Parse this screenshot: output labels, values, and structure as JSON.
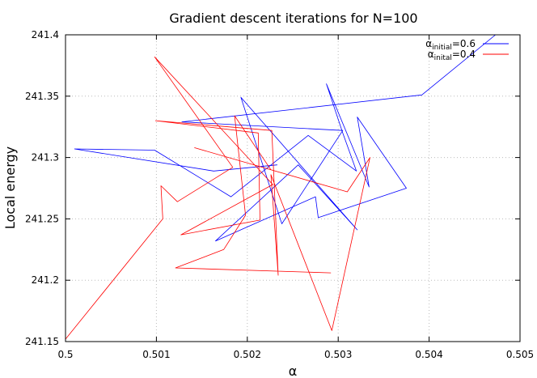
{
  "chart_data": {
    "type": "line",
    "title": "Gradient descent iterations for N=100",
    "xlabel": "α",
    "ylabel": "Local energy",
    "xlim": [
      0.5,
      0.505
    ],
    "ylim": [
      241.15,
      241.4
    ],
    "xticks": [
      0.5,
      0.501,
      0.502,
      0.503,
      0.504,
      0.505
    ],
    "yticks": [
      241.15,
      241.2,
      241.25,
      241.3,
      241.35,
      241.4
    ],
    "xtick_labels": [
      "0.5",
      "0.501",
      "0.502",
      "0.503",
      "0.504",
      "0.505"
    ],
    "ytick_labels": [
      "241.15",
      "241.2",
      "241.25",
      "241.3",
      "241.35",
      "241.4"
    ],
    "grid": true,
    "legend_position": "top-right",
    "series": [
      {
        "name": "α_initial = 0.6",
        "legend": {
          "base": "α",
          "sub": "initial",
          "rest": "=0.6"
        },
        "color": "#0000ff",
        "points": [
          [
            0.50473,
            241.4
          ],
          [
            0.50392,
            241.351
          ],
          [
            0.50128,
            241.329
          ],
          [
            0.50305,
            241.322
          ],
          [
            0.50238,
            241.246
          ],
          [
            0.50193,
            241.349
          ],
          [
            0.50321,
            241.241
          ],
          [
            0.50256,
            241.294
          ],
          [
            0.50165,
            241.232
          ],
          [
            0.50275,
            241.268
          ],
          [
            0.50278,
            241.251
          ],
          [
            0.50375,
            241.275
          ],
          [
            0.50321,
            241.333
          ],
          [
            0.50334,
            241.276
          ],
          [
            0.50287,
            241.36
          ],
          [
            0.50305,
            241.32
          ],
          [
            0.5032,
            241.289
          ],
          [
            0.50267,
            241.318
          ],
          [
            0.50182,
            241.268
          ],
          [
            0.50098,
            241.306
          ],
          [
            0.5001,
            241.307
          ],
          [
            0.50163,
            241.289
          ],
          [
            0.50233,
            241.294
          ]
        ]
      },
      {
        "name": "α_inital = 0.4",
        "legend": {
          "base": "α",
          "sub": "inital",
          "rest": "=0.4"
        },
        "color": "#ff0000",
        "points": [
          [
            0.5,
            241.152
          ],
          [
            0.50107,
            241.25
          ],
          [
            0.50105,
            241.277
          ],
          [
            0.50123,
            241.264
          ],
          [
            0.50184,
            241.292
          ],
          [
            0.50098,
            241.382
          ],
          [
            0.50228,
            241.278
          ],
          [
            0.50127,
            241.237
          ],
          [
            0.50214,
            241.249
          ],
          [
            0.50212,
            241.32
          ],
          [
            0.50099,
            241.33
          ],
          [
            0.50227,
            241.322
          ],
          [
            0.50234,
            241.204
          ],
          [
            0.50226,
            241.286
          ],
          [
            0.50293,
            241.159
          ],
          [
            0.50335,
            241.3
          ],
          [
            0.5031,
            241.272
          ],
          [
            0.50142,
            241.308
          ],
          [
            0.50226,
            241.29
          ],
          [
            0.50186,
            241.334
          ],
          [
            0.50198,
            241.253
          ],
          [
            0.50174,
            241.225
          ],
          [
            0.50121,
            241.21
          ],
          [
            0.50292,
            241.206
          ]
        ]
      }
    ]
  }
}
